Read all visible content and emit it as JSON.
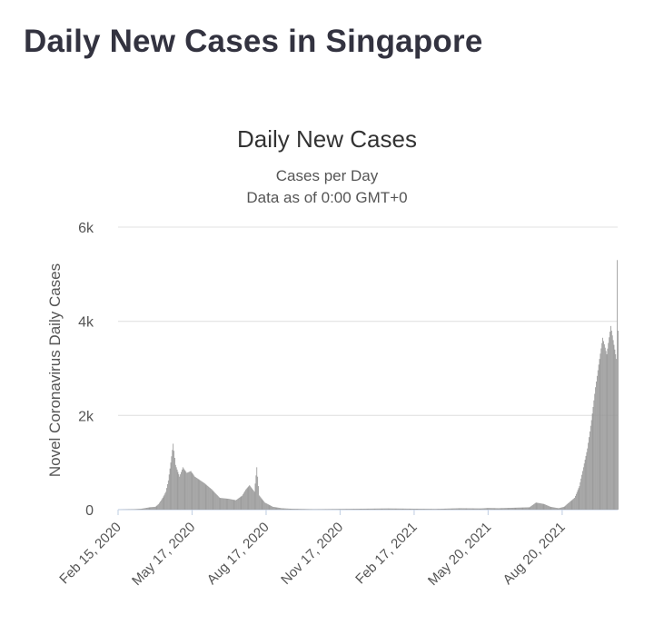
{
  "page": {
    "title": "Daily New Cases in Singapore"
  },
  "chart_data": {
    "type": "bar",
    "title": "Daily New Cases",
    "subtitle_lines": [
      "Cases per Day",
      "Data as of 0:00 GMT+0"
    ],
    "ylabel": "Novel Coronavirus Daily Cases",
    "xlabel": "",
    "ylim": [
      0,
      6000
    ],
    "y_ticks": [
      0,
      2000,
      4000,
      6000
    ],
    "y_tick_labels": [
      "0",
      "2k",
      "4k",
      "6k"
    ],
    "x_range": [
      "2020-02-15",
      "2021-10-28"
    ],
    "x_ticks": [
      "2020-02-15",
      "2020-05-17",
      "2020-08-17",
      "2020-11-17",
      "2021-02-17",
      "2021-05-20",
      "2021-08-20"
    ],
    "x_tick_labels": [
      "Feb 15, 2020",
      "May 17, 2020",
      "Aug 17, 2020",
      "Nov 17, 2020",
      "Feb 17, 2021",
      "May 20, 2021",
      "Aug 20, 2021"
    ],
    "grid": true,
    "bar_color": "#999999",
    "series": [
      {
        "keypoints": [
          [
            "2020-02-15",
            0
          ],
          [
            "2020-03-07",
            10
          ],
          [
            "2020-03-15",
            20
          ],
          [
            "2020-03-25",
            50
          ],
          [
            "2020-04-01",
            60
          ],
          [
            "2020-04-05",
            120
          ],
          [
            "2020-04-10",
            250
          ],
          [
            "2020-04-14",
            380
          ],
          [
            "2020-04-17",
            620
          ],
          [
            "2020-04-20",
            1000
          ],
          [
            "2020-04-23",
            1400
          ],
          [
            "2020-04-26",
            950
          ],
          [
            "2020-05-01",
            700
          ],
          [
            "2020-05-05",
            900
          ],
          [
            "2020-05-10",
            780
          ],
          [
            "2020-05-15",
            820
          ],
          [
            "2020-05-20",
            700
          ],
          [
            "2020-06-01",
            560
          ],
          [
            "2020-06-10",
            430
          ],
          [
            "2020-06-20",
            250
          ],
          [
            "2020-07-01",
            230
          ],
          [
            "2020-07-10",
            200
          ],
          [
            "2020-07-18",
            300
          ],
          [
            "2020-07-22",
            420
          ],
          [
            "2020-07-27",
            520
          ],
          [
            "2020-08-02",
            380
          ],
          [
            "2020-08-05",
            900
          ],
          [
            "2020-08-08",
            300
          ],
          [
            "2020-08-15",
            150
          ],
          [
            "2020-08-25",
            60
          ],
          [
            "2020-09-05",
            30
          ],
          [
            "2020-09-15",
            20
          ],
          [
            "2020-10-15",
            8
          ],
          [
            "2021-01-15",
            25
          ],
          [
            "2021-03-15",
            15
          ],
          [
            "2021-04-15",
            30
          ],
          [
            "2021-05-10",
            25
          ],
          [
            "2021-05-20",
            35
          ],
          [
            "2021-06-01",
            30
          ],
          [
            "2021-07-10",
            50
          ],
          [
            "2021-07-18",
            150
          ],
          [
            "2021-07-28",
            120
          ],
          [
            "2021-08-05",
            60
          ],
          [
            "2021-08-15",
            30
          ],
          [
            "2021-08-22",
            60
          ],
          [
            "2021-08-28",
            150
          ],
          [
            "2021-09-04",
            250
          ],
          [
            "2021-09-10",
            500
          ],
          [
            "2021-09-15",
            900
          ],
          [
            "2021-09-20",
            1300
          ],
          [
            "2021-09-25",
            1900
          ],
          [
            "2021-09-30",
            2600
          ],
          [
            "2021-10-05",
            3200
          ],
          [
            "2021-10-09",
            3650
          ],
          [
            "2021-10-14",
            3300
          ],
          [
            "2021-10-19",
            3900
          ],
          [
            "2021-10-23",
            3500
          ],
          [
            "2021-10-26",
            3200
          ],
          [
            "2021-10-27",
            5300
          ],
          [
            "2021-10-28",
            3800
          ]
        ]
      }
    ]
  }
}
